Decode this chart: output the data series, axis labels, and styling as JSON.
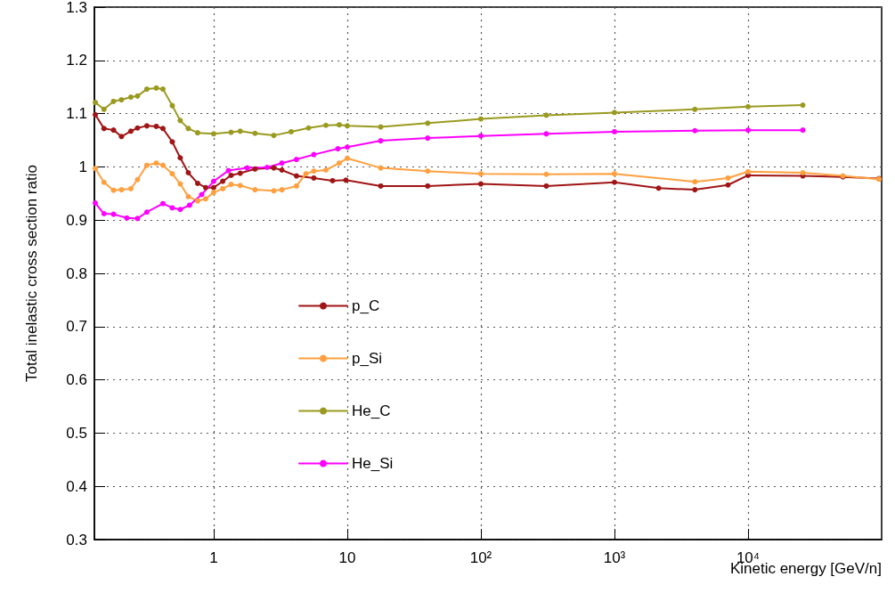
{
  "chart_data": {
    "type": "line",
    "xlabel": "Kinetic energy [GeV/n]",
    "ylabel": "Total inelastic cross section ratio",
    "log": "x",
    "grid": true,
    "legend": "bottom left",
    "marker": "circle",
    "line_style": "solid",
    "xlim": [
      0.128,
      100000
    ],
    "xticks": [
      1,
      10,
      {
        "value": 100,
        "label": "10²"
      },
      {
        "value": 1000,
        "label": "10³"
      },
      {
        "value": 10000,
        "label": "10⁴"
      }
    ],
    "ylim": [
      0.3,
      1.3
    ],
    "yticks": [
      0.3,
      0.4,
      0.5,
      0.6,
      0.7,
      0.8,
      0.9,
      1,
      1.1,
      1.2,
      1.3
    ],
    "series": [
      {
        "name": "p_C",
        "color": "#a01515",
        "x": [
          0.13,
          0.151,
          0.178,
          0.204,
          0.24,
          0.269,
          0.316,
          0.372,
          0.417,
          0.49,
          0.562,
          0.646,
          0.759,
          0.871,
          1,
          1.17,
          1.35,
          1.58,
          2.04,
          2.82,
          3.24,
          4.17,
          5.62,
          7.76,
          9.77,
          17.8,
          40,
          100,
          309,
          1000,
          2140,
          4000,
          7080,
          10000,
          25700,
          51300,
          95500
        ],
        "values": [
          1.098,
          1.072,
          1.069,
          1.057,
          1.067,
          1.073,
          1.077,
          1.076,
          1.072,
          1.047,
          1.017,
          0.989,
          0.969,
          0.961,
          0.961,
          0.973,
          0.984,
          0.988,
          0.996,
          0.998,
          0.994,
          0.983,
          0.979,
          0.974,
          0.975,
          0.964,
          0.964,
          0.968,
          0.964,
          0.971,
          0.96,
          0.957,
          0.966,
          0.984,
          0.983,
          0.981,
          0.978
        ]
      },
      {
        "name": "p_Si",
        "color": "#ffa040",
        "x": [
          0.13,
          0.151,
          0.178,
          0.204,
          0.24,
          0.269,
          0.316,
          0.372,
          0.417,
          0.49,
          0.562,
          0.646,
          0.759,
          0.871,
          1,
          1.17,
          1.35,
          1.58,
          2.04,
          2.82,
          3.24,
          4.17,
          4.9,
          5.62,
          6.92,
          8.71,
          10,
          17.8,
          40,
          100,
          309,
          1000,
          4000,
          7080,
          10000,
          25700,
          51300,
          95500
        ],
        "values": [
          0.997,
          0.971,
          0.956,
          0.957,
          0.959,
          0.976,
          1.003,
          1.007,
          1.003,
          0.987,
          0.968,
          0.944,
          0.936,
          0.94,
          0.952,
          0.959,
          0.967,
          0.965,
          0.957,
          0.955,
          0.957,
          0.964,
          0.987,
          0.992,
          0.994,
          1.007,
          1.016,
          0.998,
          0.992,
          0.987,
          0.986,
          0.987,
          0.972,
          0.979,
          0.991,
          0.989,
          0.983,
          0.977
        ]
      },
      {
        "name": "He_C",
        "color": "#9a9a20",
        "x": [
          0.13,
          0.151,
          0.178,
          0.204,
          0.24,
          0.269,
          0.316,
          0.372,
          0.417,
          0.49,
          0.562,
          0.646,
          0.759,
          1,
          1.35,
          1.58,
          2.04,
          2.82,
          3.8,
          5.13,
          6.92,
          8.71,
          10,
          17.8,
          40,
          100,
          309,
          1000,
          4000,
          10000,
          25700
        ],
        "values": [
          1.121,
          1.108,
          1.123,
          1.126,
          1.131,
          1.133,
          1.146,
          1.148,
          1.146,
          1.115,
          1.087,
          1.072,
          1.064,
          1.062,
          1.065,
          1.067,
          1.063,
          1.059,
          1.066,
          1.073,
          1.078,
          1.079,
          1.077,
          1.075,
          1.082,
          1.09,
          1.097,
          1.102,
          1.108,
          1.113,
          1.116
        ]
      },
      {
        "name": "He_Si",
        "color": "#ff00ff",
        "x": [
          0.13,
          0.151,
          0.178,
          0.224,
          0.269,
          0.316,
          0.417,
          0.49,
          0.562,
          0.66,
          0.813,
          1,
          1.29,
          1.78,
          2.51,
          3.24,
          4.17,
          5.62,
          8.51,
          10,
          17.8,
          40,
          100,
          309,
          1000,
          4000,
          10000,
          25700
        ],
        "values": [
          0.932,
          0.912,
          0.911,
          0.904,
          0.903,
          0.915,
          0.931,
          0.923,
          0.92,
          0.928,
          0.948,
          0.973,
          0.993,
          0.998,
          0.999,
          1.007,
          1.014,
          1.023,
          1.034,
          1.037,
          1.049,
          1.054,
          1.058,
          1.062,
          1.066,
          1.068,
          1.069,
          1.069
        ]
      }
    ]
  }
}
